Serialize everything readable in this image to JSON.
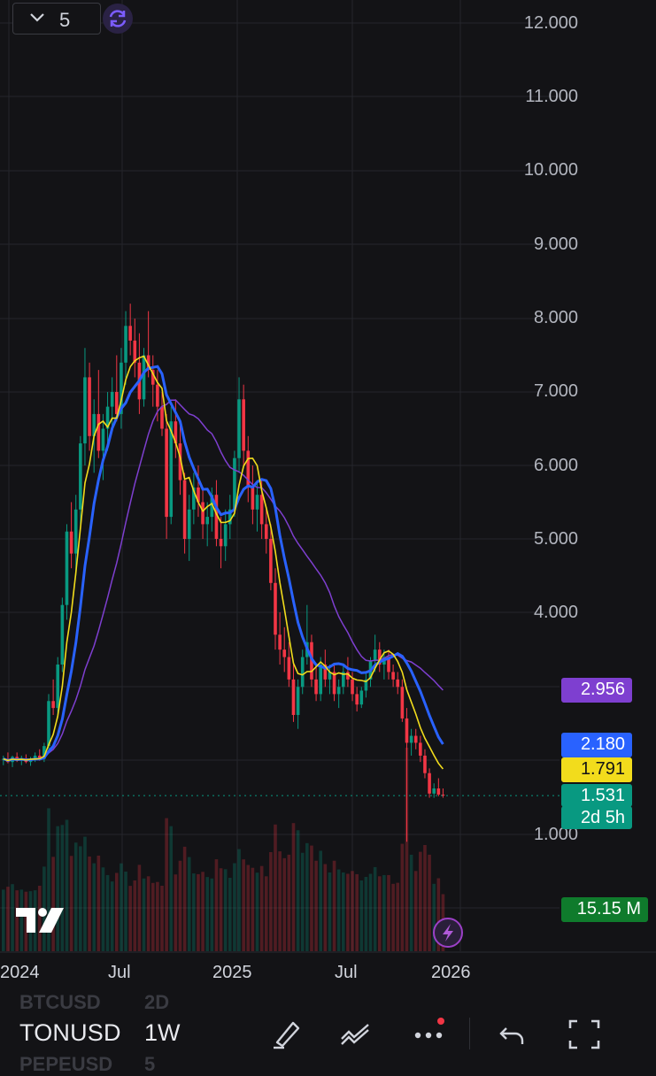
{
  "toolbar_top": {
    "layout_count": "5",
    "sync_icon": "sync-icon"
  },
  "price_axis": {
    "labels": [
      "12.000",
      "11.000",
      "10.000",
      "9.000",
      "8.000",
      "7.000",
      "6.000",
      "5.000",
      "4.000",
      "1.000"
    ]
  },
  "badges": {
    "ma_long": {
      "value": "2.956",
      "color": "#7e3fd0"
    },
    "ma_mid": {
      "value": "2.180",
      "color": "#2962ff"
    },
    "ma_short": {
      "value": "1.791",
      "color": "#f2dc1c"
    },
    "last_price": {
      "value": "1.531",
      "color": "#089981"
    },
    "countdown": {
      "value": "2d 5h",
      "color": "#089981"
    },
    "volume": {
      "value": "15.15 M",
      "color": "#0f7b2c"
    }
  },
  "time_axis": {
    "labels": [
      "2024",
      "Jul",
      "2025",
      "Jul",
      "2026"
    ]
  },
  "bottom_bar": {
    "prev_symbol": "BTCUSD",
    "prev_interval": "2D",
    "symbol": "TONUSD",
    "interval": "1W",
    "next_symbol": "PEPEUSD",
    "next_interval": "5"
  },
  "colors": {
    "up": "#089981",
    "down": "#f23645",
    "background": "#131316",
    "grid": "#25262c"
  },
  "chart_data": {
    "type": "candlestick",
    "symbol": "TONUSD",
    "interval": "1W",
    "price_scale": "log",
    "ylim": [
      0.6,
      12.0
    ],
    "candles": [
      [
        1.95,
        2.0,
        1.85,
        1.95
      ],
      [
        1.95,
        2.05,
        1.88,
        1.9
      ],
      [
        1.9,
        2.0,
        1.82,
        1.98
      ],
      [
        1.98,
        2.05,
        1.9,
        1.92
      ],
      [
        1.92,
        2.0,
        1.85,
        1.96
      ],
      [
        1.96,
        2.02,
        1.88,
        1.9
      ],
      [
        1.9,
        1.98,
        1.84,
        1.95
      ],
      [
        1.95,
        2.05,
        1.9,
        2.0
      ],
      [
        2.0,
        2.1,
        1.92,
        1.95
      ],
      [
        1.95,
        2.2,
        1.9,
        2.15
      ],
      [
        2.15,
        2.9,
        2.1,
        2.8
      ],
      [
        2.8,
        3.1,
        2.6,
        2.7
      ],
      [
        2.7,
        3.4,
        2.6,
        3.3
      ],
      [
        3.3,
        4.2,
        3.2,
        4.1
      ],
      [
        4.1,
        5.2,
        3.9,
        5.1
      ],
      [
        5.1,
        5.5,
        4.6,
        4.8
      ],
      [
        4.8,
        5.6,
        4.5,
        5.4
      ],
      [
        5.4,
        6.4,
        5.2,
        6.3
      ],
      [
        6.3,
        7.6,
        6.0,
        7.2
      ],
      [
        7.2,
        7.4,
        6.2,
        6.4
      ],
      [
        6.4,
        6.9,
        5.9,
        6.7
      ],
      [
        6.7,
        7.3,
        6.1,
        6.2
      ],
      [
        6.2,
        6.7,
        5.8,
        6.5
      ],
      [
        6.5,
        7.0,
        6.2,
        6.8
      ],
      [
        6.8,
        7.2,
        6.5,
        7.0
      ],
      [
        7.0,
        7.5,
        6.6,
        6.7
      ],
      [
        6.7,
        7.6,
        6.5,
        7.4
      ],
      [
        7.4,
        8.1,
        7.1,
        7.9
      ],
      [
        7.9,
        8.2,
        7.5,
        7.7
      ],
      [
        7.7,
        8.0,
        7.2,
        7.4
      ],
      [
        7.4,
        7.8,
        6.7,
        6.9
      ],
      [
        6.9,
        7.6,
        6.8,
        7.5
      ],
      [
        7.5,
        8.1,
        7.2,
        7.3
      ],
      [
        7.3,
        7.5,
        6.8,
        7.1
      ],
      [
        7.1,
        7.3,
        6.6,
        6.8
      ],
      [
        6.8,
        7.0,
        6.4,
        6.5
      ],
      [
        6.5,
        6.7,
        5.0,
        5.3
      ],
      [
        5.3,
        6.8,
        5.2,
        6.6
      ],
      [
        6.6,
        6.9,
        6.1,
        6.3
      ],
      [
        6.3,
        6.6,
        5.6,
        5.8
      ],
      [
        5.8,
        5.9,
        4.8,
        5.0
      ],
      [
        5.0,
        5.6,
        4.7,
        5.4
      ],
      [
        5.4,
        5.9,
        5.2,
        5.7
      ],
      [
        5.7,
        6.0,
        5.3,
        5.5
      ],
      [
        5.5,
        5.7,
        5.0,
        5.2
      ],
      [
        5.2,
        5.5,
        4.9,
        5.3
      ],
      [
        5.3,
        5.7,
        5.1,
        5.6
      ],
      [
        5.6,
        5.8,
        4.9,
        5.0
      ],
      [
        5.0,
        5.3,
        4.6,
        4.9
      ],
      [
        4.9,
        5.4,
        4.7,
        5.2
      ],
      [
        5.2,
        5.6,
        5.0,
        5.4
      ],
      [
        5.4,
        6.2,
        5.3,
        6.1
      ],
      [
        6.1,
        7.2,
        5.9,
        6.9
      ],
      [
        6.9,
        7.1,
        6.0,
        6.2
      ],
      [
        6.2,
        6.4,
        5.5,
        5.7
      ],
      [
        5.7,
        6.0,
        5.2,
        5.4
      ],
      [
        5.4,
        5.8,
        5.1,
        5.6
      ],
      [
        5.6,
        5.8,
        5.0,
        5.2
      ],
      [
        5.2,
        5.4,
        4.8,
        5.0
      ],
      [
        5.0,
        5.2,
        4.3,
        4.4
      ],
      [
        4.4,
        4.6,
        3.5,
        3.7
      ],
      [
        3.7,
        4.0,
        3.3,
        3.5
      ],
      [
        3.5,
        3.8,
        3.2,
        3.4
      ],
      [
        3.4,
        3.6,
        3.0,
        3.1
      ],
      [
        3.1,
        3.3,
        2.5,
        2.6
      ],
      [
        2.6,
        3.1,
        2.4,
        3.0
      ],
      [
        3.0,
        3.5,
        2.9,
        3.4
      ],
      [
        3.4,
        4.1,
        3.3,
        3.6
      ],
      [
        3.6,
        3.7,
        3.0,
        3.1
      ],
      [
        3.1,
        3.3,
        2.8,
        2.9
      ],
      [
        2.9,
        3.4,
        2.8,
        3.3
      ],
      [
        3.3,
        3.5,
        3.0,
        3.1
      ],
      [
        3.1,
        3.3,
        2.9,
        3.2
      ],
      [
        3.2,
        3.3,
        2.8,
        2.9
      ],
      [
        2.9,
        3.1,
        2.7,
        3.0
      ],
      [
        3.0,
        3.3,
        2.9,
        3.2
      ],
      [
        3.2,
        3.4,
        3.0,
        3.1
      ],
      [
        3.1,
        3.2,
        2.8,
        2.9
      ],
      [
        2.9,
        3.0,
        2.65,
        2.75
      ],
      [
        2.75,
        3.0,
        2.7,
        2.95
      ],
      [
        2.95,
        3.2,
        2.85,
        3.1
      ],
      [
        3.1,
        3.4,
        3.0,
        3.35
      ],
      [
        3.35,
        3.7,
        3.2,
        3.5
      ],
      [
        3.5,
        3.6,
        3.2,
        3.3
      ],
      [
        3.3,
        3.5,
        3.1,
        3.4
      ],
      [
        3.4,
        3.5,
        3.1,
        3.2
      ],
      [
        3.2,
        3.3,
        3.0,
        3.1
      ],
      [
        3.1,
        3.2,
        2.9,
        3.0
      ],
      [
        3.0,
        3.1,
        2.5,
        2.55
      ],
      [
        2.55,
        2.7,
        0.9,
        2.2
      ],
      [
        2.2,
        2.4,
        2.0,
        2.3
      ],
      [
        2.3,
        2.4,
        2.1,
        2.2
      ],
      [
        2.2,
        2.3,
        1.9,
        2.0
      ],
      [
        2.0,
        2.1,
        1.7,
        1.75
      ],
      [
        1.75,
        1.8,
        1.5,
        1.55
      ],
      [
        1.55,
        1.65,
        1.5,
        1.6
      ],
      [
        1.6,
        1.7,
        1.52,
        1.54
      ],
      [
        1.54,
        1.6,
        1.5,
        1.53
      ]
    ],
    "moving_averages": [
      {
        "color": "#7e3fd0",
        "last": 2.956
      },
      {
        "color": "#2962ff",
        "last": 2.18
      },
      {
        "color": "#f2dc1c",
        "last": 1.791
      }
    ]
  }
}
